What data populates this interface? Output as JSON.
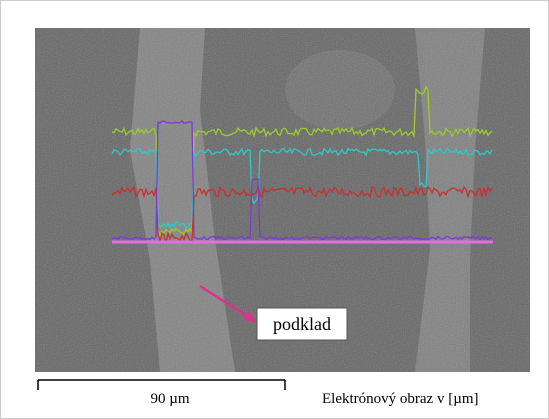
{
  "image": {
    "annotation": "podklad",
    "scale_bar": "90 µm",
    "caption": "Elektrónový obraz v [µm]"
  }
}
